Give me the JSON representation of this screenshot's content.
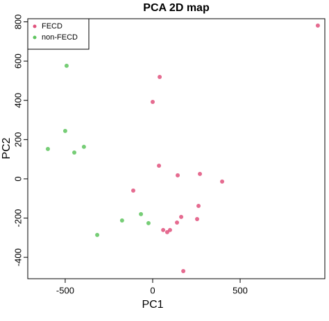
{
  "chart_data": {
    "type": "scatter",
    "title": "PCA 2D map",
    "x_label": "PC1",
    "y_label": "PC2",
    "xlim": [
      -714,
      984
    ],
    "ylim": [
      -509,
      816
    ],
    "xticks": [
      -500,
      0,
      500
    ],
    "yticks": [
      -400,
      -200,
      0,
      200,
      400,
      600,
      800
    ],
    "legend": "top-left",
    "grid": false,
    "series": [
      {
        "name": "FECD",
        "color": "#e0517c",
        "x": [
          944,
          40,
          0,
          36,
          143,
          270,
          397,
          -111,
          262,
          163,
          139,
          254,
          60,
          83,
          99,
          175
        ],
        "values": [
          781,
          519,
          392,
          67,
          18,
          25,
          -14,
          -60,
          -138,
          -194,
          -223,
          -205,
          -261,
          -272,
          -261,
          -470
        ]
      },
      {
        "name": "non-FECD",
        "color": "#5ec45e",
        "x": [
          -492,
          -500,
          -599,
          -448,
          -393,
          -67,
          -175,
          -24,
          -317
        ],
        "values": [
          576,
          244,
          152,
          134,
          163,
          -180,
          -212,
          -226,
          -286
        ]
      }
    ]
  }
}
